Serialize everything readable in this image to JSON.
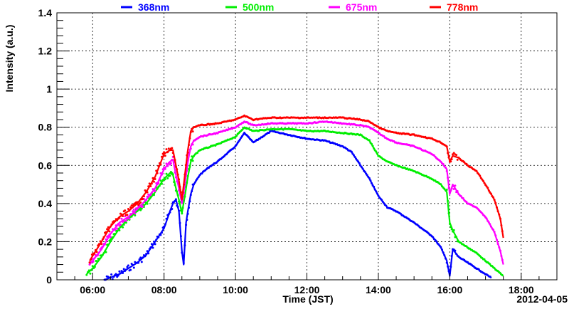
{
  "chart_data": {
    "type": "scatter",
    "title": "",
    "xlabel": "Time (JST)",
    "ylabel": "Intensity (a.u.)",
    "date_label": "2012-04-05",
    "xlim": [
      "05:00",
      "19:00"
    ],
    "ylim": [
      0,
      1.4
    ],
    "grid": true,
    "legend": "top",
    "x_ticks": [
      "06:00",
      "08:00",
      "10:00",
      "12:00",
      "14:00",
      "16:00",
      "18:00"
    ],
    "y_ticks": [
      "0",
      "0.2",
      "0.4",
      "0.6",
      "0.8",
      "1",
      "1.2",
      "1.4"
    ],
    "y_tick_values": [
      0,
      0.2,
      0.4,
      0.6,
      0.8,
      1.0,
      1.2,
      1.4
    ],
    "series": [
      {
        "name": "368nm",
        "color": "#0000ff",
        "points": [
          [
            "06:20",
            0.0
          ],
          [
            "06:45",
            0.03
          ],
          [
            "07:00",
            0.06
          ],
          [
            "07:15",
            0.09
          ],
          [
            "07:30",
            0.13
          ],
          [
            "07:45",
            0.2
          ],
          [
            "08:00",
            0.27
          ],
          [
            "08:10",
            0.36
          ],
          [
            "08:15",
            0.4
          ],
          [
            "08:20",
            0.42
          ],
          [
            "08:25",
            0.36
          ],
          [
            "08:30",
            0.15
          ],
          [
            "08:33",
            0.08
          ],
          [
            "08:37",
            0.3
          ],
          [
            "08:40",
            0.36
          ],
          [
            "08:45",
            0.45
          ],
          [
            "08:50",
            0.5
          ],
          [
            "09:00",
            0.55
          ],
          [
            "09:15",
            0.59
          ],
          [
            "09:30",
            0.62
          ],
          [
            "09:45",
            0.66
          ],
          [
            "10:00",
            0.7
          ],
          [
            "10:15",
            0.77
          ],
          [
            "10:30",
            0.72
          ],
          [
            "10:45",
            0.75
          ],
          [
            "11:00",
            0.78
          ],
          [
            "11:30",
            0.76
          ],
          [
            "12:00",
            0.74
          ],
          [
            "12:30",
            0.73
          ],
          [
            "13:00",
            0.7
          ],
          [
            "13:15",
            0.67
          ],
          [
            "13:30",
            0.6
          ],
          [
            "13:45",
            0.53
          ],
          [
            "14:00",
            0.44
          ],
          [
            "14:15",
            0.38
          ],
          [
            "14:30",
            0.36
          ],
          [
            "15:00",
            0.3
          ],
          [
            "15:30",
            0.23
          ],
          [
            "15:45",
            0.17
          ],
          [
            "15:55",
            0.1
          ],
          [
            "16:00",
            0.02
          ],
          [
            "16:05",
            0.16
          ],
          [
            "16:15",
            0.12
          ],
          [
            "16:30",
            0.09
          ],
          [
            "16:45",
            0.06
          ],
          [
            "17:00",
            0.03
          ],
          [
            "17:10",
            0.01
          ]
        ]
      },
      {
        "name": "500nm",
        "color": "#00ee00",
        "points": [
          [
            "05:50",
            0.03
          ],
          [
            "06:00",
            0.06
          ],
          [
            "06:15",
            0.12
          ],
          [
            "06:30",
            0.2
          ],
          [
            "06:45",
            0.27
          ],
          [
            "07:00",
            0.32
          ],
          [
            "07:15",
            0.36
          ],
          [
            "07:30",
            0.4
          ],
          [
            "07:45",
            0.46
          ],
          [
            "08:00",
            0.53
          ],
          [
            "08:10",
            0.56
          ],
          [
            "08:15",
            0.55
          ],
          [
            "08:20",
            0.48
          ],
          [
            "08:25",
            0.42
          ],
          [
            "08:30",
            0.35
          ],
          [
            "08:35",
            0.44
          ],
          [
            "08:40",
            0.54
          ],
          [
            "08:45",
            0.62
          ],
          [
            "08:50",
            0.65
          ],
          [
            "09:00",
            0.68
          ],
          [
            "09:30",
            0.71
          ],
          [
            "10:00",
            0.75
          ],
          [
            "10:15",
            0.8
          ],
          [
            "10:30",
            0.78
          ],
          [
            "11:00",
            0.79
          ],
          [
            "11:30",
            0.79
          ],
          [
            "12:00",
            0.78
          ],
          [
            "12:30",
            0.78
          ],
          [
            "13:00",
            0.77
          ],
          [
            "13:30",
            0.76
          ],
          [
            "13:45",
            0.73
          ],
          [
            "14:00",
            0.65
          ],
          [
            "14:15",
            0.62
          ],
          [
            "14:30",
            0.6
          ],
          [
            "15:00",
            0.57
          ],
          [
            "15:30",
            0.53
          ],
          [
            "15:45",
            0.5
          ],
          [
            "15:55",
            0.46
          ],
          [
            "16:00",
            0.3
          ],
          [
            "16:05",
            0.26
          ],
          [
            "16:15",
            0.2
          ],
          [
            "16:30",
            0.17
          ],
          [
            "16:45",
            0.14
          ],
          [
            "17:00",
            0.1
          ],
          [
            "17:15",
            0.06
          ],
          [
            "17:30",
            0.02
          ]
        ]
      },
      {
        "name": "675nm",
        "color": "#ff00ff",
        "points": [
          [
            "05:55",
            0.08
          ],
          [
            "06:15",
            0.16
          ],
          [
            "06:30",
            0.24
          ],
          [
            "06:45",
            0.3
          ],
          [
            "07:00",
            0.33
          ],
          [
            "07:15",
            0.37
          ],
          [
            "07:30",
            0.42
          ],
          [
            "07:45",
            0.48
          ],
          [
            "08:00",
            0.58
          ],
          [
            "08:10",
            0.62
          ],
          [
            "08:15",
            0.63
          ],
          [
            "08:20",
            0.55
          ],
          [
            "08:25",
            0.48
          ],
          [
            "08:30",
            0.4
          ],
          [
            "08:35",
            0.5
          ],
          [
            "08:40",
            0.62
          ],
          [
            "08:45",
            0.7
          ],
          [
            "08:50",
            0.73
          ],
          [
            "09:00",
            0.75
          ],
          [
            "09:30",
            0.77
          ],
          [
            "10:00",
            0.8
          ],
          [
            "10:15",
            0.83
          ],
          [
            "10:30",
            0.81
          ],
          [
            "11:00",
            0.82
          ],
          [
            "11:30",
            0.82
          ],
          [
            "12:00",
            0.82
          ],
          [
            "12:30",
            0.83
          ],
          [
            "13:00",
            0.82
          ],
          [
            "13:30",
            0.81
          ],
          [
            "13:45",
            0.8
          ],
          [
            "14:00",
            0.77
          ],
          [
            "14:15",
            0.74
          ],
          [
            "14:30",
            0.72
          ],
          [
            "15:00",
            0.7
          ],
          [
            "15:30",
            0.66
          ],
          [
            "15:45",
            0.62
          ],
          [
            "15:55",
            0.58
          ],
          [
            "16:00",
            0.45
          ],
          [
            "16:05",
            0.5
          ],
          [
            "16:15",
            0.45
          ],
          [
            "16:30",
            0.4
          ],
          [
            "16:45",
            0.38
          ],
          [
            "17:00",
            0.33
          ],
          [
            "17:15",
            0.25
          ],
          [
            "17:25",
            0.15
          ],
          [
            "17:30",
            0.08
          ]
        ]
      },
      {
        "name": "778nm",
        "color": "#ff0000",
        "points": [
          [
            "05:55",
            0.1
          ],
          [
            "06:15",
            0.2
          ],
          [
            "06:30",
            0.28
          ],
          [
            "06:45",
            0.33
          ],
          [
            "07:00",
            0.36
          ],
          [
            "07:15",
            0.4
          ],
          [
            "07:30",
            0.46
          ],
          [
            "07:45",
            0.54
          ],
          [
            "08:00",
            0.66
          ],
          [
            "08:10",
            0.68
          ],
          [
            "08:15",
            0.68
          ],
          [
            "08:20",
            0.6
          ],
          [
            "08:25",
            0.52
          ],
          [
            "08:30",
            0.42
          ],
          [
            "08:35",
            0.55
          ],
          [
            "08:40",
            0.68
          ],
          [
            "08:45",
            0.78
          ],
          [
            "08:50",
            0.8
          ],
          [
            "09:00",
            0.81
          ],
          [
            "09:30",
            0.82
          ],
          [
            "10:00",
            0.84
          ],
          [
            "10:15",
            0.86
          ],
          [
            "10:30",
            0.84
          ],
          [
            "11:00",
            0.85
          ],
          [
            "11:30",
            0.85
          ],
          [
            "12:00",
            0.85
          ],
          [
            "12:30",
            0.85
          ],
          [
            "13:00",
            0.85
          ],
          [
            "13:30",
            0.84
          ],
          [
            "13:45",
            0.83
          ],
          [
            "14:00",
            0.8
          ],
          [
            "14:15",
            0.78
          ],
          [
            "14:30",
            0.77
          ],
          [
            "15:00",
            0.76
          ],
          [
            "15:30",
            0.74
          ],
          [
            "15:45",
            0.72
          ],
          [
            "15:55",
            0.7
          ],
          [
            "16:00",
            0.62
          ],
          [
            "16:05",
            0.65
          ],
          [
            "16:15",
            0.64
          ],
          [
            "16:30",
            0.6
          ],
          [
            "16:45",
            0.57
          ],
          [
            "17:00",
            0.5
          ],
          [
            "17:15",
            0.42
          ],
          [
            "17:25",
            0.32
          ],
          [
            "17:30",
            0.22
          ]
        ]
      }
    ]
  }
}
